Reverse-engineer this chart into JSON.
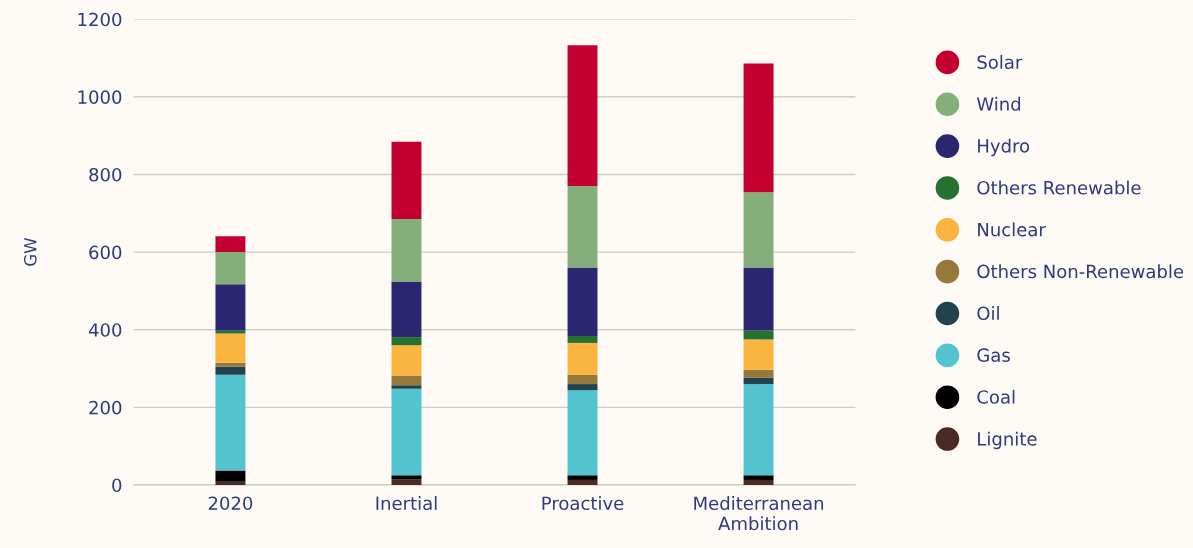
{
  "chart_data": {
    "type": "bar",
    "stacked": true,
    "ylabel": "GW",
    "categories": [
      "2020",
      "Inertial",
      "Proactive",
      "Mediterranean\nAmbition"
    ],
    "series": [
      {
        "name": "Lignite",
        "color": "#4a2a22",
        "values": [
          8,
          14,
          13,
          13
        ]
      },
      {
        "name": "Coal",
        "color": "#000000",
        "values": [
          29,
          11,
          12,
          12
        ]
      },
      {
        "name": "Gas",
        "color": "#53c4cf",
        "values": [
          247,
          223,
          219,
          235
        ]
      },
      {
        "name": "Oil",
        "color": "#22424f",
        "values": [
          21,
          9,
          16,
          17
        ]
      },
      {
        "name": "Others Non-Renewable",
        "color": "#96793a",
        "values": [
          10,
          25,
          24,
          20
        ]
      },
      {
        "name": "Nuclear",
        "color": "#f9b53f",
        "values": [
          75,
          78,
          82,
          78
        ]
      },
      {
        "name": "Others Renewable",
        "color": "#267030",
        "values": [
          8,
          21,
          18,
          23
        ]
      },
      {
        "name": "Hydro",
        "color": "#2a2670",
        "values": [
          119,
          143,
          176,
          162
        ]
      },
      {
        "name": "Wind",
        "color": "#84af7b",
        "values": [
          83,
          161,
          210,
          194
        ]
      },
      {
        "name": "Solar",
        "color": "#c3002f",
        "values": [
          41,
          199,
          363,
          332
        ]
      }
    ],
    "ylim": [
      0,
      1200
    ],
    "yticks": [
      0,
      200,
      400,
      600,
      800,
      1000,
      1200
    ],
    "grid": "y",
    "legend": "right"
  }
}
